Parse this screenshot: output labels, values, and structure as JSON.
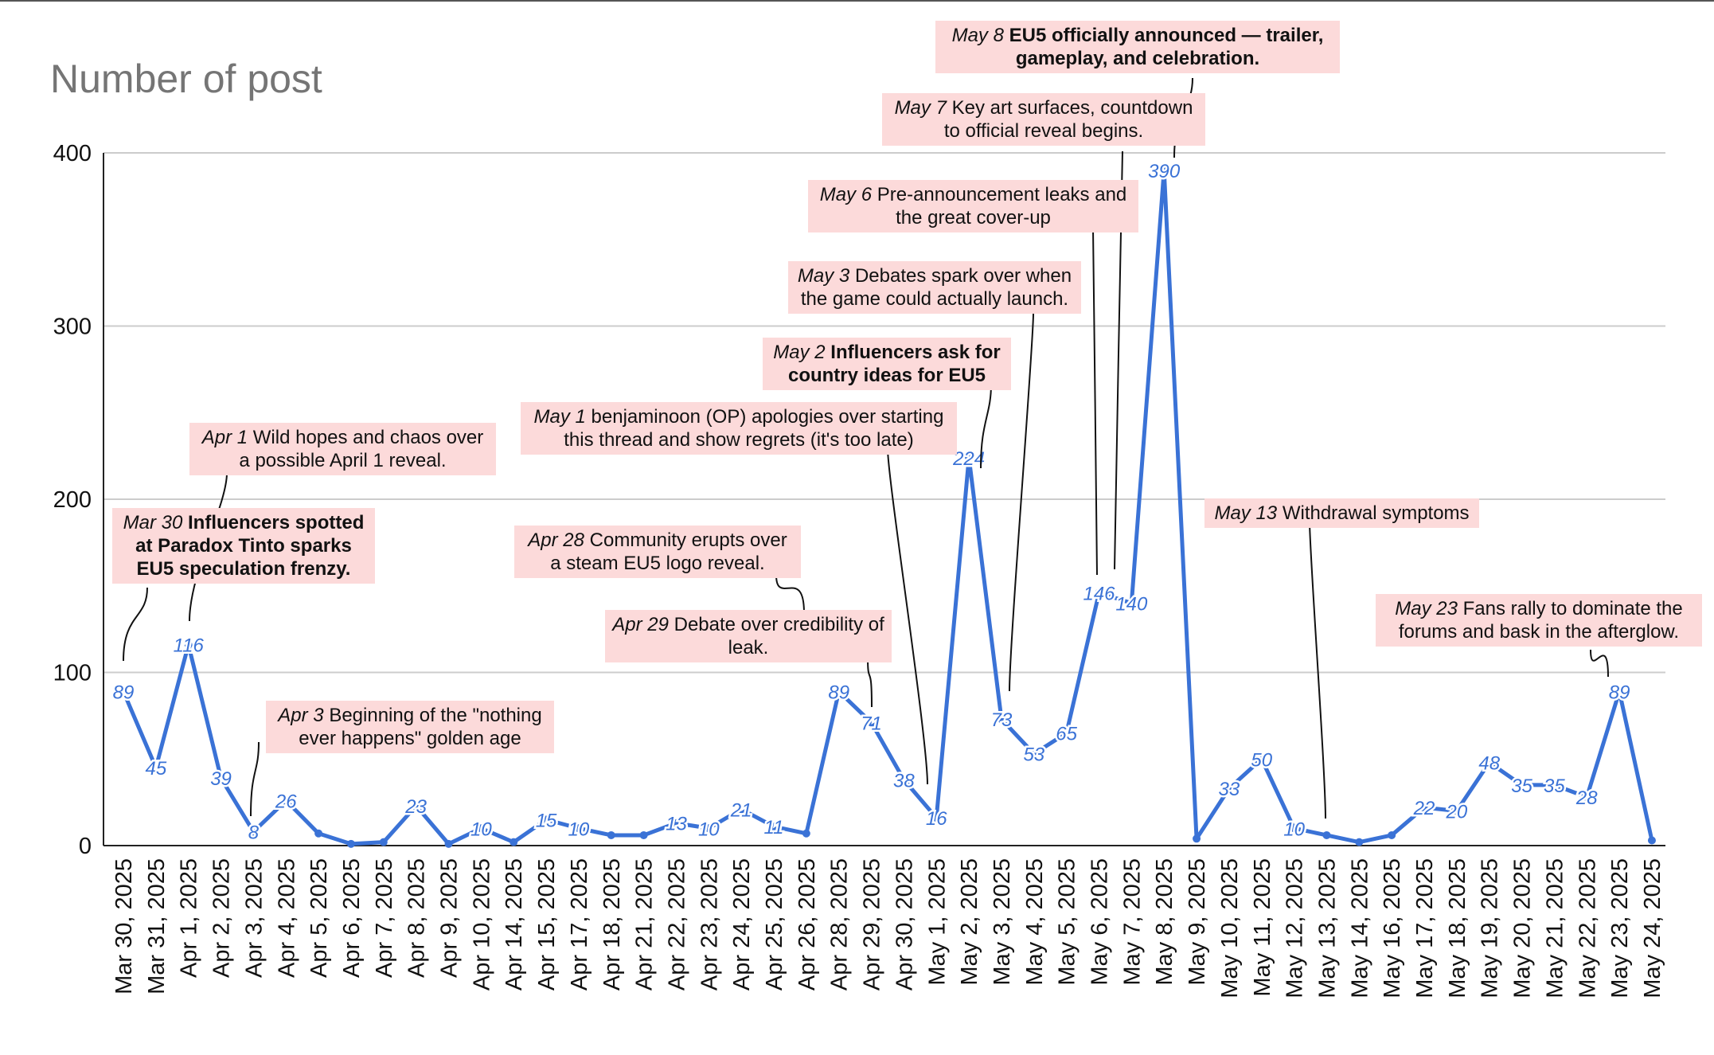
{
  "title": "Number of post",
  "chart_data": {
    "type": "line",
    "title": "Number of post",
    "ylim": [
      0,
      400
    ],
    "yticks": [
      0,
      100,
      200,
      300,
      400
    ],
    "grid": true,
    "color": "#3a72d6",
    "x": [
      "Mar 30, 2025",
      "Mar 31, 2025",
      "Apr 1, 2025",
      "Apr 2, 2025",
      "Apr 3, 2025",
      "Apr 4, 2025",
      "Apr 5, 2025",
      "Apr 6, 2025",
      "Apr 7, 2025",
      "Apr 8, 2025",
      "Apr 9, 2025",
      "Apr 10, 2025",
      "Apr 14, 2025",
      "Apr 15, 2025",
      "Apr 17, 2025",
      "Apr 18, 2025",
      "Apr 21, 2025",
      "Apr 22, 2025",
      "Apr 23, 2025",
      "Apr 24, 2025",
      "Apr 25, 2025",
      "Apr 26, 2025",
      "Apr 28, 2025",
      "Apr 29, 2025",
      "Apr 30, 2025",
      "May 1, 2025",
      "May 2, 2025",
      "May 3, 2025",
      "May 4, 2025",
      "May 5, 2025",
      "May 6, 2025",
      "May 7, 2025",
      "May 8, 2025",
      "May 9, 2025",
      "May 10, 2025",
      "May 11, 2025",
      "May 12, 2025",
      "May 13, 2025",
      "May 14, 2025",
      "May 16, 2025",
      "May 17, 2025",
      "May 18, 2025",
      "May 19, 2025",
      "May 20, 2025",
      "May 21, 2025",
      "May 22, 2025",
      "May 23, 2025",
      "May 24, 2025"
    ],
    "values": [
      89,
      45,
      116,
      39,
      8,
      26,
      7,
      1,
      2,
      23,
      1,
      10,
      2,
      15,
      10,
      6,
      6,
      13,
      10,
      21,
      11,
      7,
      89,
      71,
      38,
      16,
      224,
      73,
      53,
      65,
      146,
      140,
      390,
      4,
      33,
      50,
      10,
      6,
      2,
      6,
      22,
      20,
      48,
      35,
      35,
      28,
      89,
      3
    ],
    "labels": [
      "89",
      "45",
      "116",
      "39",
      "8",
      "26",
      "",
      "",
      "",
      "23",
      "",
      "10",
      "",
      "15",
      "10",
      "",
      "",
      "13",
      "10",
      "21",
      "11",
      "",
      "89",
      "71",
      "38",
      "16",
      "224",
      "73",
      "53",
      "65",
      "146",
      "140",
      "390",
      "",
      "33",
      "50",
      "10",
      "",
      "",
      "",
      "22",
      "20",
      "48",
      "35",
      "35",
      "28",
      "89",
      ""
    ],
    "annotations": [
      {
        "date": "Mar 30",
        "text": "Influencers spotted at Paradox Tinto sparks EU5 speculation frenzy.",
        "lines": [
          "Influencers spotted",
          "at Paradox Tinto sparks",
          "EU5 speculation frenzy."
        ],
        "bold": true,
        "index": 0
      },
      {
        "date": "Apr 1",
        "text": "Wild hopes and chaos over a possible April 1 reveal.",
        "lines": [
          "Wild hopes and chaos over",
          "a possible April 1 reveal."
        ],
        "bold": false,
        "index": 2
      },
      {
        "date": "Apr 3",
        "text": "Beginning of the \"nothing ever happens\" golden age",
        "lines": [
          "Beginning of the \"nothing",
          "ever happens\" golden age"
        ],
        "bold": false,
        "index": 4
      },
      {
        "date": "Apr 28",
        "text": "Community erupts over a steam EU5 logo reveal.",
        "lines": [
          "Community erupts over",
          "a steam EU5 logo reveal."
        ],
        "bold": false,
        "index": 22
      },
      {
        "date": "Apr 29",
        "text": "Debate over credibility of leak.",
        "lines": [
          "Debate over credibility of",
          "leak."
        ],
        "bold": false,
        "index": 23
      },
      {
        "date": "May 1",
        "text": "benjaminoon (OP) apologies over starting this thread and show regrets (it's too late)",
        "lines": [
          "benjaminoon (OP) apologies over starting",
          "this thread and show regrets (it's too late)"
        ],
        "bold": false,
        "index": 25
      },
      {
        "date": "May 2",
        "text": "Influencers ask for country ideas for EU5",
        "lines": [
          "Influencers ask for",
          "country ideas for EU5"
        ],
        "bold": true,
        "index": 26
      },
      {
        "date": "May 3",
        "text": "Debates spark over when the game could actually launch.",
        "lines": [
          "Debates spark over when",
          "the game could actually launch."
        ],
        "bold": false,
        "index": 27
      },
      {
        "date": "May 6",
        "text": "Pre-announcement leaks and the great cover-up",
        "lines": [
          "Pre-announcement leaks and",
          "the great cover-up"
        ],
        "bold": false,
        "index": 30
      },
      {
        "date": "May 7",
        "text": "Key art surfaces, countdown to official reveal begins.",
        "lines": [
          "Key art surfaces, countdown",
          "to official reveal begins."
        ],
        "bold": false,
        "index": 31
      },
      {
        "date": "May 8",
        "text": "EU5 officially announced — trailer, gameplay, and celebration.",
        "lines": [
          "EU5 officially announced — trailer,",
          "gameplay, and celebration."
        ],
        "bold": true,
        "index": 32
      },
      {
        "date": "May 13",
        "text": "Withdrawal symptoms",
        "lines": [
          "Withdrawal symptoms"
        ],
        "bold": false,
        "index": 37
      },
      {
        "date": "May 23",
        "text": "Fans rally to dominate the forums and bask in the afterglow.",
        "lines": [
          "Fans rally to dominate the",
          "forums and bask in the afterglow."
        ],
        "bold": false,
        "index": 46
      }
    ]
  }
}
